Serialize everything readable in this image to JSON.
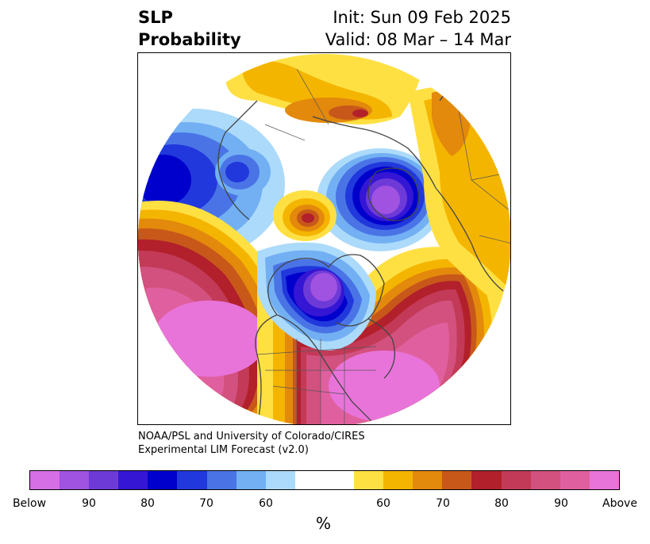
{
  "title": {
    "left_line1": "SLP",
    "left_line2": "Probability",
    "right_line1": "Init: Sun 09 Feb 2025",
    "right_line2": "Valid: 08 Mar – 14 Mar"
  },
  "credit": {
    "line1": "NOAA/PSL and University of Colorado/CIRES",
    "line2": "Experimental LIM Forecast (v2.0)"
  },
  "colorbar": {
    "colors": [
      "#d66fe6",
      "#a052e0",
      "#6d3ad8",
      "#3516d4",
      "#0000cc",
      "#2138dc",
      "#4a74e6",
      "#72b0f3",
      "#acdafa",
      "#ffffff",
      "#ffffff",
      "#ffe043",
      "#f4b500",
      "#e3890c",
      "#c8581a",
      "#b2202b",
      "#c23a57",
      "#d2517f",
      "#e0609f",
      "#e874da"
    ],
    "tick_labels": [
      "Below",
      "90",
      "80",
      "70",
      "60",
      "60",
      "70",
      "80",
      "90",
      "Above"
    ],
    "unit": "%"
  },
  "map": {
    "projection": "north-polar-stereographic",
    "variable": "SLP probability"
  }
}
